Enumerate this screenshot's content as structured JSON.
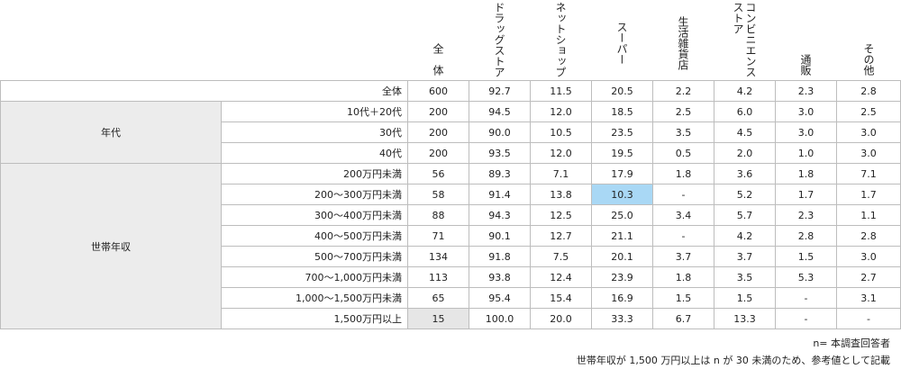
{
  "columns": [
    "全　体",
    "ドラッグストア",
    "ネットショップ",
    "スーパー",
    "生活雑貨店",
    "コンビニエンスストア",
    "通販",
    "その他"
  ],
  "groups": {
    "age": "年代",
    "income": "世帯年収"
  },
  "rows": [
    {
      "label": "全体",
      "values": [
        "600",
        "92.7",
        "11.5",
        "20.5",
        "2.2",
        "4.2",
        "2.3",
        "2.8"
      ]
    },
    {
      "label": "10代＋20代",
      "values": [
        "200",
        "94.5",
        "12.0",
        "18.5",
        "2.5",
        "6.0",
        "3.0",
        "2.5"
      ]
    },
    {
      "label": "30代",
      "values": [
        "200",
        "90.0",
        "10.5",
        "23.5",
        "3.5",
        "4.5",
        "3.0",
        "3.0"
      ]
    },
    {
      "label": "40代",
      "values": [
        "200",
        "93.5",
        "12.0",
        "19.5",
        "0.5",
        "2.0",
        "1.0",
        "3.0"
      ]
    },
    {
      "label": "200万円未満",
      "values": [
        "56",
        "89.3",
        "7.1",
        "17.9",
        "1.8",
        "3.6",
        "1.8",
        "7.1"
      ]
    },
    {
      "label": "200～300万円未満",
      "values": [
        "58",
        "91.4",
        "13.8",
        "10.3",
        "-",
        "5.2",
        "1.7",
        "1.7"
      ]
    },
    {
      "label": "300～400万円未満",
      "values": [
        "88",
        "94.3",
        "12.5",
        "25.0",
        "3.4",
        "5.7",
        "2.3",
        "1.1"
      ]
    },
    {
      "label": "400～500万円未満",
      "values": [
        "71",
        "90.1",
        "12.7",
        "21.1",
        "-",
        "4.2",
        "2.8",
        "2.8"
      ]
    },
    {
      "label": "500～700万円未満",
      "values": [
        "134",
        "91.8",
        "7.5",
        "20.1",
        "3.7",
        "3.7",
        "1.5",
        "3.0"
      ]
    },
    {
      "label": "700～1,000万円未満",
      "values": [
        "113",
        "93.8",
        "12.4",
        "23.9",
        "1.8",
        "3.5",
        "5.3",
        "2.7"
      ]
    },
    {
      "label": "1,000～1,500万円未満",
      "values": [
        "65",
        "95.4",
        "15.4",
        "16.9",
        "1.5",
        "1.5",
        "-",
        "3.1"
      ]
    },
    {
      "label": "1,500万円以上",
      "values": [
        "15",
        "100.0",
        "20.0",
        "33.3",
        "6.7",
        "13.3",
        "-",
        "-"
      ]
    }
  ],
  "notes": {
    "n": "n= 本調査回答者",
    "caution": "世帯年収が 1,500 万円以上は n が 30 未満のため、参考値として記載"
  }
}
